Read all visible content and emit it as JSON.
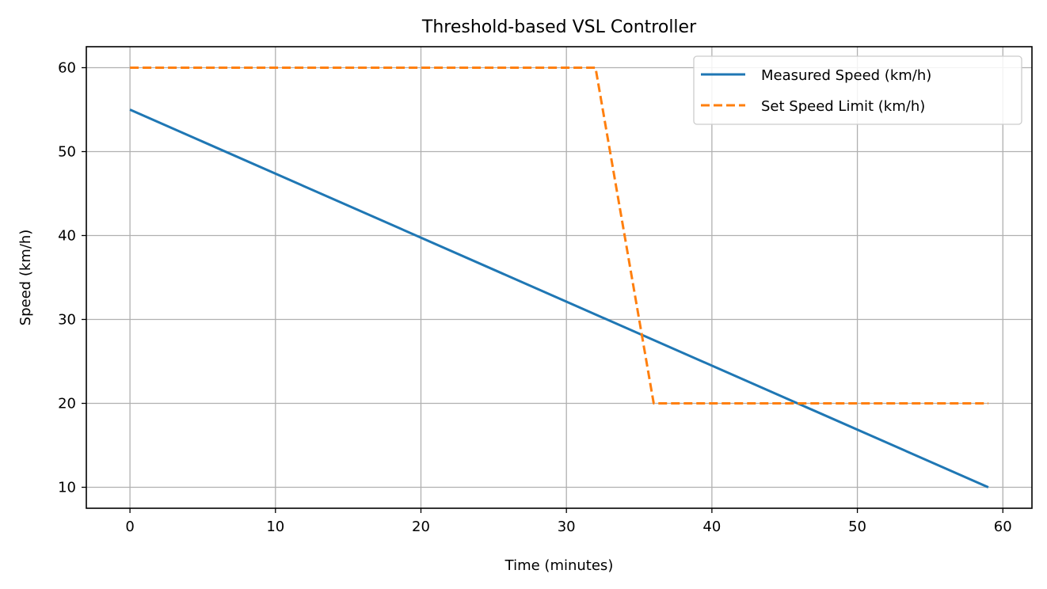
{
  "chart_data": {
    "type": "line",
    "title": "Threshold-based VSL Controller",
    "xlabel": "Time (minutes)",
    "ylabel": "Speed (km/h)",
    "xlim": [
      -3,
      62
    ],
    "ylim": [
      7.5,
      62.5
    ],
    "xticks": [
      0,
      10,
      20,
      30,
      40,
      50,
      60
    ],
    "yticks": [
      10,
      20,
      30,
      40,
      50,
      60
    ],
    "grid": true,
    "legend_position": "top-right",
    "series": [
      {
        "name": "Measured Speed (km/h)",
        "style": "solid",
        "color": "#1f77b4",
        "x": [
          0,
          59
        ],
        "y": [
          55,
          10
        ]
      },
      {
        "name": "Set Speed Limit (km/h)",
        "style": "dashed",
        "color": "#ff7f0e",
        "x": [
          0,
          32,
          36,
          59
        ],
        "y": [
          60,
          60,
          20,
          20
        ]
      }
    ]
  }
}
